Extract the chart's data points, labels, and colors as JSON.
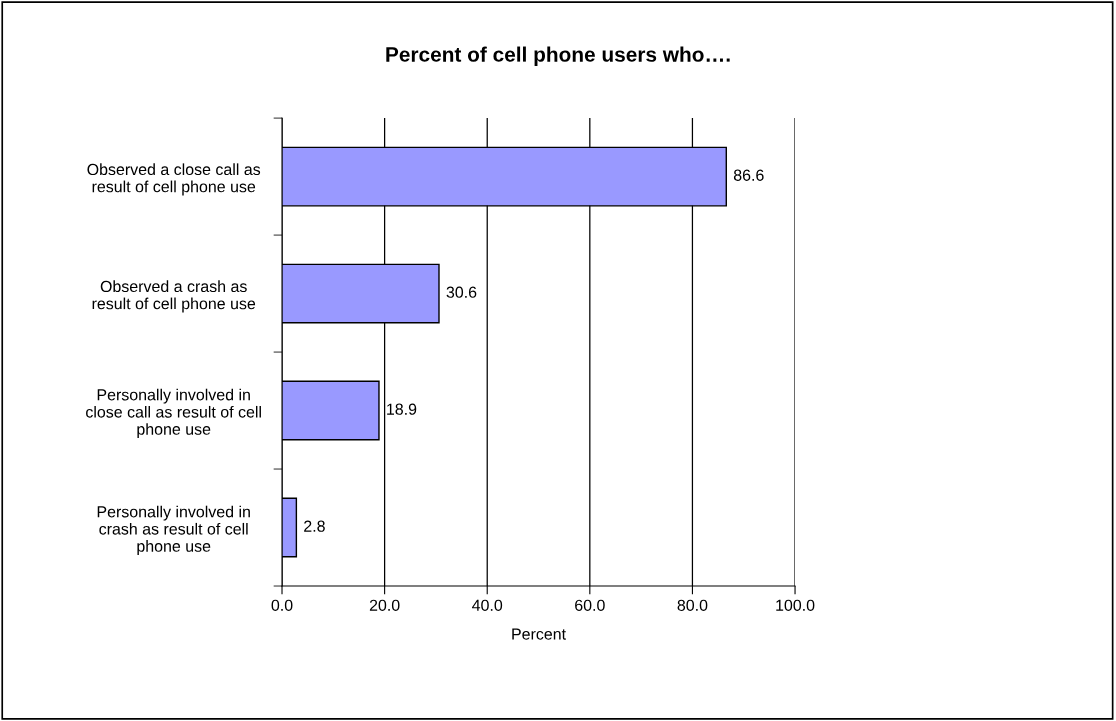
{
  "chart_data": {
    "type": "bar",
    "orientation": "horizontal",
    "title": "Percent of cell phone users who….",
    "xlabel": "Percent",
    "categories": [
      "Observed a close call as\nresult of cell phone use",
      "Observed a crash as\nresult of cell phone use",
      "Personally involved in\nclose call as result of cell\nphone use",
      "Personally involved in\ncrash as result of cell\nphone use"
    ],
    "values": [
      86.6,
      30.6,
      18.9,
      2.8
    ],
    "color": "#9999ff",
    "xlim": [
      0,
      100
    ],
    "xticks": [
      {
        "value": 0,
        "label": "0.0"
      },
      {
        "value": 20,
        "label": "20.0"
      },
      {
        "value": 40,
        "label": "40.0"
      },
      {
        "value": 60,
        "label": "60.0"
      },
      {
        "value": 80,
        "label": "80.0"
      },
      {
        "value": 100,
        "label": "100.0"
      }
    ],
    "grid": "x",
    "data_labels": true
  }
}
